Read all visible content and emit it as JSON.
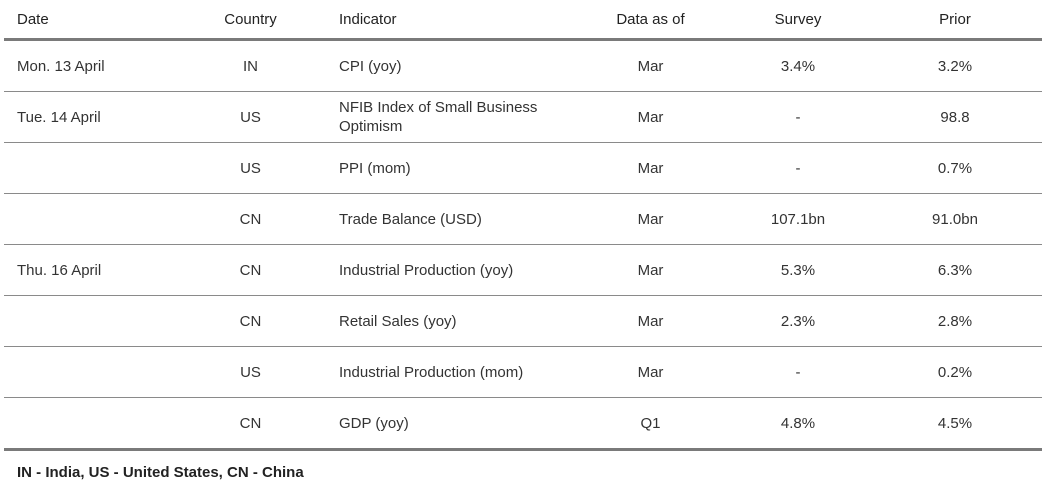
{
  "table": {
    "headers": [
      "Date",
      "Country",
      "Indicator",
      "Data as of",
      "Survey",
      "Prior"
    ],
    "rows": [
      {
        "date": "Mon. 13 April",
        "country": "IN",
        "indicator": "CPI (yoy)",
        "data_as_of": "Mar",
        "survey": "3.4%",
        "prior": "3.2%"
      },
      {
        "date": "Tue. 14 April",
        "country": "US",
        "indicator": "NFIB Index of Small Business Optimism",
        "data_as_of": "Mar",
        "survey": "-",
        "prior": "98.8"
      },
      {
        "date": "",
        "country": "US",
        "indicator": "PPI (mom)",
        "data_as_of": "Mar",
        "survey": "-",
        "prior": "0.7%"
      },
      {
        "date": "",
        "country": "CN",
        "indicator": "Trade Balance (USD)",
        "data_as_of": "Mar",
        "survey": "107.1bn",
        "prior": "91.0bn"
      },
      {
        "date": "Thu. 16 April",
        "country": "CN",
        "indicator": "Industrial Production (yoy)",
        "data_as_of": "Mar",
        "survey": "5.3%",
        "prior": "6.3%"
      },
      {
        "date": "",
        "country": "CN",
        "indicator": "Retail Sales (yoy)",
        "data_as_of": "Mar",
        "survey": "2.3%",
        "prior": "2.8%"
      },
      {
        "date": "",
        "country": "US",
        "indicator": "Industrial Production (mom)",
        "data_as_of": "Mar",
        "survey": "-",
        "prior": "0.2%"
      },
      {
        "date": "",
        "country": "CN",
        "indicator": "GDP (yoy)",
        "data_as_of": "Q1",
        "survey": "4.8%",
        "prior": "4.5%"
      }
    ]
  },
  "footnote": "IN - India, US - United States, CN - China"
}
